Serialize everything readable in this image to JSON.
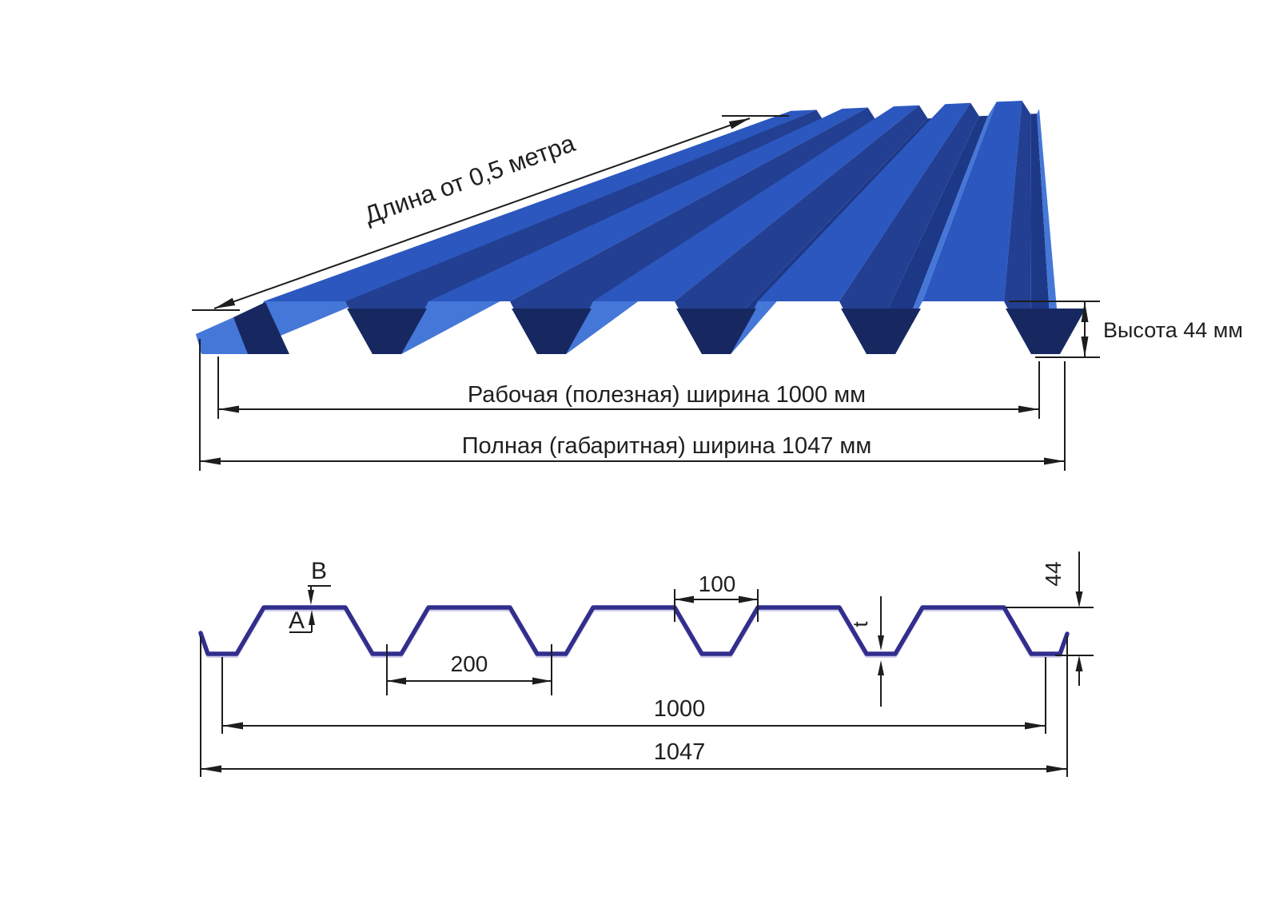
{
  "specs": {
    "profile_height_mm": 44,
    "working_width_mm": 1000,
    "overall_width_mm": 1047,
    "rib_pitch_mm": 200,
    "rib_top_opening_mm": 100,
    "min_length_m": 0.5
  },
  "labels_3d": {
    "length": "Длина от 0,5 метра",
    "height": "Высота 44 мм",
    "working_width": "Рабочая (полезная) ширина 1000 мм",
    "full_width": "Полная (габаритная) ширина 1047 мм"
  },
  "cross_section": {
    "coating_top": "B",
    "coating_bottom": "A",
    "rib_top_opening": "100",
    "rib_pitch": "200",
    "height": "44",
    "thickness": "t",
    "working_width": "1000",
    "full_width": "1047"
  },
  "colors": {
    "sheet_top": "#2b57bf",
    "sheet_lit": "#4577d8",
    "sheet_dark": "#223f92",
    "sheet_trough": "#1d3887",
    "sheet_valley": "#172861",
    "profile_line": "#322e8d",
    "dimension_line": "#1d1d1d",
    "text": "#1f1f1f",
    "background": "#ffffff"
  }
}
